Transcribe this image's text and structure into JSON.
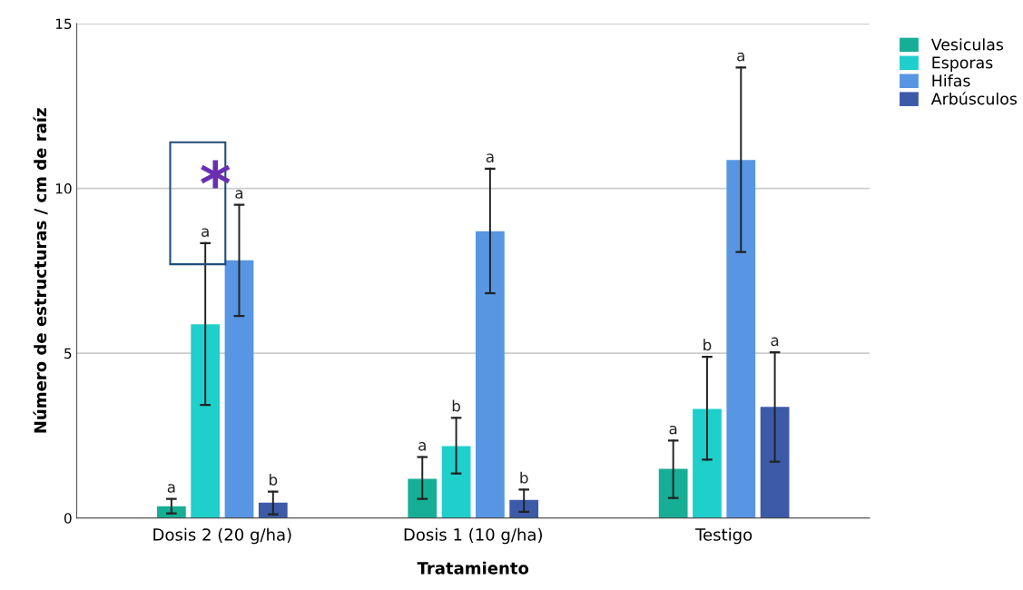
{
  "chart_data": {
    "type": "bar",
    "xlabel": "Tratamiento",
    "ylabel": "Número de estructuras / cm de raíz",
    "categories": [
      "Dosis 2 (20 g/ha)",
      "Dosis 1 (10 g/ha)",
      "Testigo"
    ],
    "series": [
      {
        "name": "Vesiculas",
        "color": "#17ae96",
        "values": [
          0.36,
          1.19,
          1.49
        ],
        "errors": [
          [
            0.14,
            0.58
          ],
          [
            0.58,
            1.85
          ],
          [
            0.61,
            2.35
          ]
        ]
      },
      {
        "name": "Esporas",
        "color": "#1ecfcb",
        "values": [
          5.88,
          2.18,
          3.31
        ],
        "errors": [
          [
            3.43,
            8.34
          ],
          [
            1.35,
            3.04
          ],
          [
            1.77,
            4.89
          ]
        ]
      },
      {
        "name": "Hifas",
        "color": "#5895e3",
        "values": [
          7.82,
          8.7,
          10.86
        ],
        "errors": [
          [
            6.13,
            9.5
          ],
          [
            6.82,
            10.6
          ],
          [
            8.07,
            13.67
          ]
        ]
      },
      {
        "name": "Arbúsculos",
        "color": "#3c5aa8",
        "values": [
          0.47,
          0.55,
          3.37
        ],
        "errors": [
          [
            0.11,
            0.8
          ],
          [
            0.19,
            0.86
          ],
          [
            1.71,
            5.03
          ]
        ]
      }
    ],
    "ylim": [
      0,
      15
    ],
    "yticks": [
      0,
      5,
      10,
      15
    ],
    "grid": "y",
    "legend": "top right",
    "annotations": [
      "a",
      "a",
      "a",
      "b",
      "a",
      "b",
      "a",
      "b",
      "a",
      "b",
      "a",
      "a",
      "*"
    ]
  }
}
